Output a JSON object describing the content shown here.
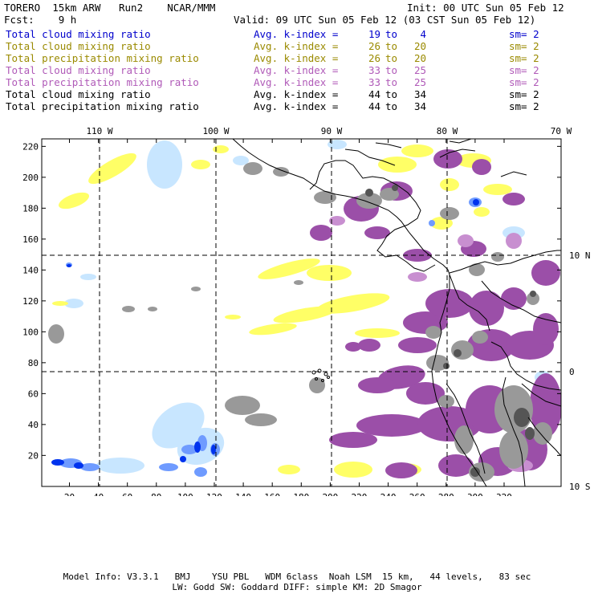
{
  "header": {
    "model": "TORERO  15km ARW   Run2    NCAR/MMM",
    "init": "Init: 00 UTC Sun 05 Feb 12",
    "fcst": "Fcst:    9 h",
    "valid": "Valid: 09 UTC Sun 05 Feb 12 (03 CST Sun 05 Feb 12)"
  },
  "legend": [
    {
      "name": "Total cloud mixing ratio",
      "avg": "Avg. k-index =",
      "from": "19",
      "to": "to",
      "end": "4",
      "sm": "sm= 2",
      "color": "#0000cc"
    },
    {
      "name": "Total cloud mixing ratio",
      "avg": "Avg. k-index =",
      "from": "26",
      "to": "to",
      "end": "20",
      "sm": "sm= 2",
      "color": "#9a8a00"
    },
    {
      "name": "Total precipitation mixing ratio",
      "avg": "Avg. k-index =",
      "from": "26",
      "to": "to",
      "end": "20",
      "sm": "sm= 2",
      "color": "#9a8a00"
    },
    {
      "name": "Total cloud mixing ratio",
      "avg": "Avg. k-index =",
      "from": "33",
      "to": "to",
      "end": "25",
      "sm": "sm= 2",
      "color": "#b05ab8"
    },
    {
      "name": "Total precipitation mixing ratio",
      "avg": "Avg. k-index =",
      "from": "33",
      "to": "to",
      "end": "25",
      "sm": "sm= 2",
      "color": "#b05ab8"
    },
    {
      "name": "Total cloud mixing ratio",
      "avg": "Avg. k-index =",
      "from": "44",
      "to": "to",
      "end": "34",
      "sm": "sm= 2",
      "color": "#000000"
    },
    {
      "name": "Total precipitation mixing ratio",
      "avg": "Avg. k-index =",
      "from": "44",
      "to": "to",
      "end": "34",
      "sm": "sm= 2",
      "color": "#000000"
    }
  ],
  "map": {
    "lon_labels": [
      "110 W",
      "100 W",
      "90 W",
      "80 W",
      "70 W"
    ],
    "lat_labels": [
      "10 N",
      "0",
      "10 S"
    ],
    "y_ticks": [
      "20",
      "40",
      "60",
      "80",
      "100",
      "120",
      "140",
      "160",
      "180",
      "200",
      "220"
    ],
    "x_ticks": [
      "20",
      "40",
      "60",
      "80",
      "100",
      "120",
      "140",
      "160",
      "180",
      "200",
      "220",
      "240",
      "260",
      "280",
      "300",
      "320"
    ],
    "colors": {
      "yellow": "#ffff66",
      "purple": "#9b4fa8",
      "light_purple": "#c88fd0",
      "gray": "#999999",
      "dark_gray": "#555555",
      "light_blue": "#c8e6ff",
      "mid_blue": "#6f9bff",
      "dark_blue": "#0033ee"
    }
  },
  "footer": {
    "line1": "Model Info: V3.3.1   BMJ    YSU PBL   WDM 6class  Noah LSM  15 km,   44 levels,   83 sec",
    "line2": "LW: Godd SW: Goddard DIFF: simple KM: 2D Smagor"
  }
}
